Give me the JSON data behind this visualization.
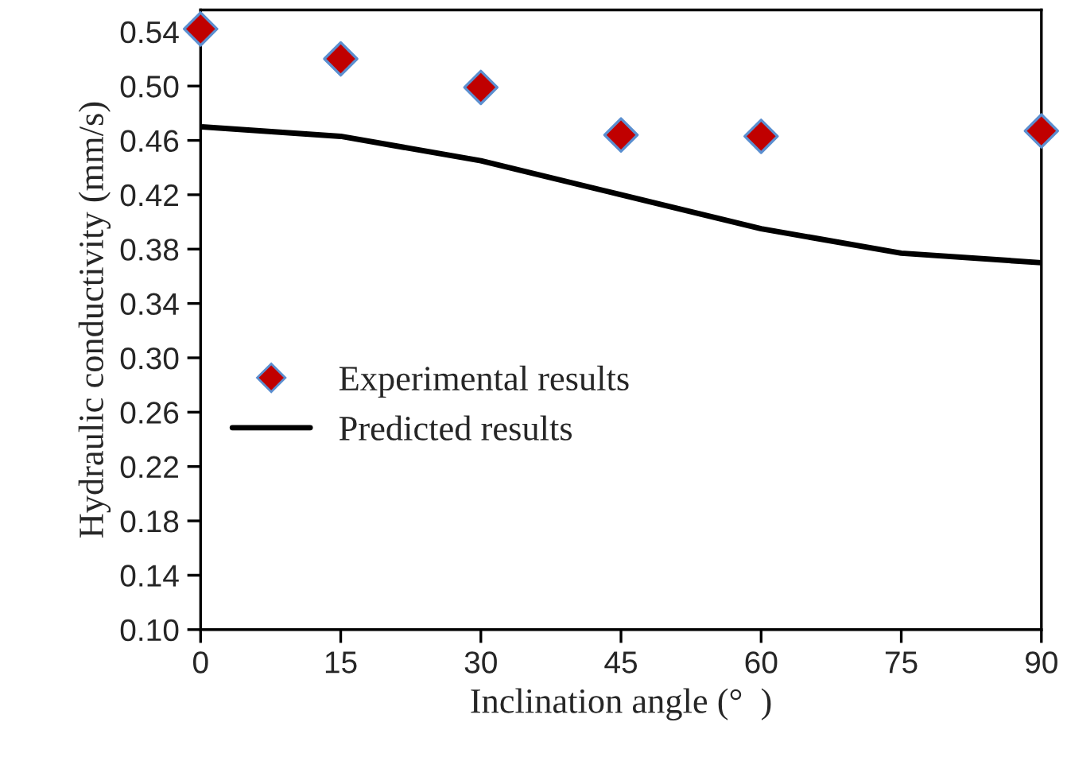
{
  "chart_data": {
    "type": "scatter",
    "xlabel": "Inclination angle (°  )",
    "ylabel": "Hydraulic conductivity (mm/s)",
    "series": [
      {
        "name": "Experimental results",
        "color": "#c00000",
        "marker": "diamond",
        "x": [
          0,
          15,
          30,
          45,
          60,
          90
        ],
        "values": [
          0.542,
          0.52,
          0.499,
          0.464,
          0.463,
          0.467
        ]
      },
      {
        "name": "Predicted results",
        "type": "line",
        "color": "#000000",
        "marker": "none",
        "line_style": "solid",
        "x": [
          0,
          15,
          30,
          45,
          60,
          75,
          90
        ],
        "values": [
          0.47,
          0.463,
          0.445,
          0.42,
          0.395,
          0.377,
          0.37
        ]
      }
    ],
    "xlim": [
      0,
      90
    ],
    "xticks": [
      0,
      15,
      30,
      45,
      60,
      75,
      90
    ],
    "ylim": [
      0.1,
      0.556
    ],
    "yticks": [
      {
        "value": 0.1,
        "label": "0.10"
      },
      {
        "value": 0.14,
        "label": "0.14"
      },
      {
        "value": 0.18,
        "label": "0.18"
      },
      {
        "value": 0.22,
        "label": "0.22"
      },
      {
        "value": 0.26,
        "label": "0.26"
      },
      {
        "value": 0.3,
        "label": "0.30"
      },
      {
        "value": 0.34,
        "label": "0.34"
      },
      {
        "value": 0.38,
        "label": "0.38"
      },
      {
        "value": 0.42,
        "label": "0.42"
      },
      {
        "value": 0.46,
        "label": "0.46"
      },
      {
        "value": 0.5,
        "label": "0.50"
      },
      {
        "value": 0.54,
        "label": "0.54"
      }
    ],
    "grid": false,
    "legend": "left"
  }
}
